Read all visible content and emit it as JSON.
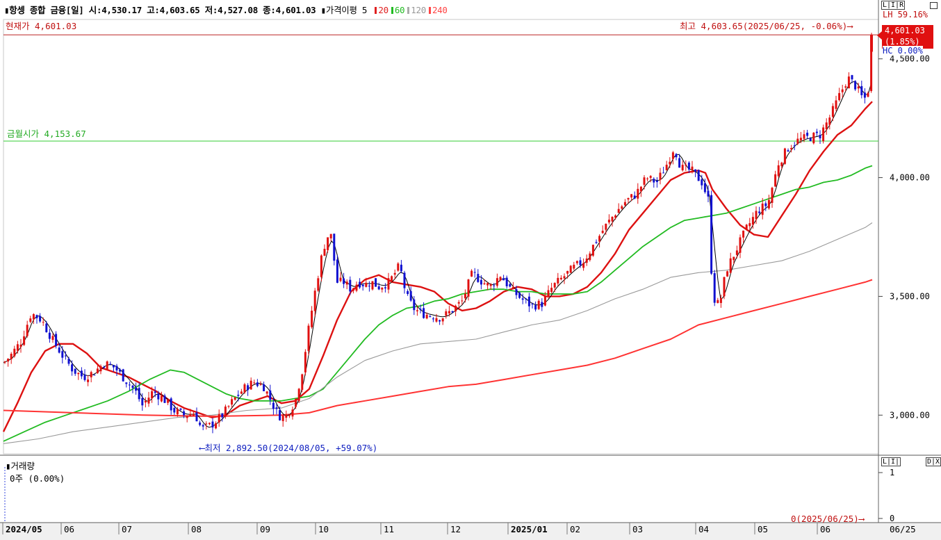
{
  "header": {
    "title": "▮항셍 종합 금융[일]",
    "open": "시:4,530.17",
    "high": "고:4,603.65",
    "low": "저:4,527.08",
    "close": "종:4,601.03",
    "ma_title": "▮가격이평 5",
    "ma": [
      {
        "label": "20",
        "color": "#e02020"
      },
      {
        "label": "60",
        "color": "#22bb22"
      },
      {
        "label": "120",
        "color": "#aaaaaa"
      },
      {
        "label": "240",
        "color": "#ff4444"
      }
    ]
  },
  "labels": {
    "current": "현재가 4,601.03",
    "monday_open": "금월시가 4,153.67",
    "high_note": "최고 4,603.65(2025/06/25, -0.06%)⟶",
    "low_note": "⟵최저 2,892.50(2024/08/05, +59.07%)",
    "price_tag_1": "4,601.03",
    "price_tag_2": "(1.85%)",
    "right_top": "LH  59.16%",
    "right_top2": "HC   0.00%",
    "ctrl_main": "L|I|R",
    "volume_title": "▮거래량",
    "volume_value": "0주 (0.00%)",
    "volume_note": "0(2025/06/25)⟶",
    "ctrl_vol": "L|I|",
    "ctrl_vol2": "D|X"
  },
  "colors": {
    "up": "#e01010",
    "down": "#1010d0",
    "ma5": "#000000",
    "ma20": "#dd1111",
    "ma60": "#22bb22",
    "ma120": "#999999",
    "ma240": "#ff3333",
    "monday_line": "#33cc33",
    "current_line": "#bb2222"
  },
  "chart_data": {
    "type": "candlestick",
    "y_ticks": [
      "4,500.00",
      "4,000.00",
      "3,500.00",
      "3,000.00"
    ],
    "y_tick_values": [
      4500,
      4000,
      3500,
      3000
    ],
    "ylim": [
      2840,
      4660
    ],
    "volume_ticks": [
      "1",
      "0"
    ],
    "x_labels": [
      "2024/05",
      "06",
      "07",
      "08",
      "09",
      "10",
      "11",
      "12",
      "2025/01",
      "02",
      "03",
      "04",
      "05",
      "06",
      "06/25"
    ],
    "reference_lines": {
      "current": 4601.03,
      "monday_open": 4153.67
    },
    "series": [
      {
        "name": "20",
        "values": [
          [
            0,
            2930
          ],
          [
            20,
            3050
          ],
          [
            40,
            3180
          ],
          [
            60,
            3270
          ],
          [
            80,
            3300
          ],
          [
            100,
            3300
          ],
          [
            120,
            3260
          ],
          [
            140,
            3200
          ],
          [
            160,
            3180
          ],
          [
            180,
            3160
          ],
          [
            200,
            3130
          ],
          [
            220,
            3100
          ],
          [
            240,
            3060
          ],
          [
            260,
            3030
          ],
          [
            280,
            3010
          ],
          [
            300,
            2990
          ],
          [
            320,
            3000
          ],
          [
            340,
            3040
          ],
          [
            360,
            3060
          ],
          [
            380,
            3080
          ],
          [
            400,
            3050
          ],
          [
            420,
            3060
          ],
          [
            440,
            3110
          ],
          [
            460,
            3250
          ],
          [
            480,
            3400
          ],
          [
            500,
            3520
          ],
          [
            520,
            3570
          ],
          [
            540,
            3590
          ],
          [
            560,
            3560
          ],
          [
            580,
            3550
          ],
          [
            600,
            3540
          ],
          [
            620,
            3520
          ],
          [
            640,
            3470
          ],
          [
            660,
            3440
          ],
          [
            680,
            3450
          ],
          [
            700,
            3480
          ],
          [
            720,
            3520
          ],
          [
            740,
            3540
          ],
          [
            760,
            3530
          ],
          [
            780,
            3500
          ],
          [
            800,
            3500
          ],
          [
            820,
            3510
          ],
          [
            840,
            3540
          ],
          [
            860,
            3600
          ],
          [
            880,
            3680
          ],
          [
            900,
            3780
          ],
          [
            920,
            3850
          ],
          [
            940,
            3920
          ],
          [
            960,
            3990
          ],
          [
            980,
            4020
          ],
          [
            1000,
            4030
          ],
          [
            1010,
            4020
          ],
          [
            1020,
            3950
          ],
          [
            1040,
            3870
          ],
          [
            1060,
            3800
          ],
          [
            1080,
            3760
          ],
          [
            1100,
            3750
          ],
          [
            1120,
            3840
          ],
          [
            1140,
            3930
          ],
          [
            1160,
            4030
          ],
          [
            1180,
            4110
          ],
          [
            1200,
            4180
          ],
          [
            1220,
            4220
          ],
          [
            1240,
            4290
          ],
          [
            1250,
            4320
          ]
        ]
      },
      {
        "name": "60",
        "values": [
          [
            0,
            2890
          ],
          [
            30,
            2930
          ],
          [
            60,
            2970
          ],
          [
            90,
            3000
          ],
          [
            120,
            3030
          ],
          [
            150,
            3060
          ],
          [
            180,
            3100
          ],
          [
            210,
            3150
          ],
          [
            240,
            3190
          ],
          [
            260,
            3180
          ],
          [
            280,
            3150
          ],
          [
            300,
            3120
          ],
          [
            320,
            3090
          ],
          [
            340,
            3070
          ],
          [
            360,
            3060
          ],
          [
            380,
            3060
          ],
          [
            400,
            3060
          ],
          [
            420,
            3070
          ],
          [
            440,
            3080
          ],
          [
            460,
            3110
          ],
          [
            480,
            3180
          ],
          [
            500,
            3250
          ],
          [
            520,
            3320
          ],
          [
            540,
            3380
          ],
          [
            560,
            3420
          ],
          [
            580,
            3450
          ],
          [
            600,
            3460
          ],
          [
            620,
            3480
          ],
          [
            640,
            3490
          ],
          [
            660,
            3510
          ],
          [
            680,
            3520
          ],
          [
            700,
            3530
          ],
          [
            720,
            3530
          ],
          [
            740,
            3520
          ],
          [
            760,
            3520
          ],
          [
            780,
            3510
          ],
          [
            800,
            3510
          ],
          [
            820,
            3510
          ],
          [
            840,
            3520
          ],
          [
            860,
            3560
          ],
          [
            880,
            3610
          ],
          [
            900,
            3660
          ],
          [
            920,
            3710
          ],
          [
            940,
            3750
          ],
          [
            960,
            3790
          ],
          [
            980,
            3820
          ],
          [
            1000,
            3830
          ],
          [
            1020,
            3840
          ],
          [
            1040,
            3850
          ],
          [
            1060,
            3870
          ],
          [
            1080,
            3890
          ],
          [
            1100,
            3910
          ],
          [
            1120,
            3930
          ],
          [
            1140,
            3950
          ],
          [
            1160,
            3960
          ],
          [
            1180,
            3980
          ],
          [
            1200,
            3990
          ],
          [
            1220,
            4010
          ],
          [
            1240,
            4040
          ],
          [
            1250,
            4050
          ]
        ]
      },
      {
        "name": "120",
        "values": [
          [
            0,
            2880
          ],
          [
            50,
            2900
          ],
          [
            100,
            2930
          ],
          [
            150,
            2950
          ],
          [
            200,
            2970
          ],
          [
            250,
            2990
          ],
          [
            300,
            3000
          ],
          [
            350,
            3020
          ],
          [
            400,
            3030
          ],
          [
            440,
            3070
          ],
          [
            480,
            3160
          ],
          [
            520,
            3230
          ],
          [
            560,
            3270
          ],
          [
            600,
            3300
          ],
          [
            640,
            3310
          ],
          [
            680,
            3320
          ],
          [
            720,
            3350
          ],
          [
            760,
            3380
          ],
          [
            800,
            3400
          ],
          [
            840,
            3440
          ],
          [
            880,
            3490
          ],
          [
            920,
            3530
          ],
          [
            960,
            3580
          ],
          [
            1000,
            3600
          ],
          [
            1040,
            3610
          ],
          [
            1080,
            3630
          ],
          [
            1120,
            3650
          ],
          [
            1160,
            3690
          ],
          [
            1200,
            3740
          ],
          [
            1240,
            3790
          ],
          [
            1250,
            3810
          ]
        ]
      },
      {
        "name": "240",
        "values": [
          [
            0,
            3020
          ],
          [
            100,
            3010
          ],
          [
            200,
            3000
          ],
          [
            300,
            2995
          ],
          [
            400,
            3000
          ],
          [
            440,
            3010
          ],
          [
            480,
            3040
          ],
          [
            520,
            3060
          ],
          [
            560,
            3080
          ],
          [
            600,
            3100
          ],
          [
            640,
            3120
          ],
          [
            680,
            3130
          ],
          [
            720,
            3150
          ],
          [
            760,
            3170
          ],
          [
            800,
            3190
          ],
          [
            840,
            3210
          ],
          [
            880,
            3240
          ],
          [
            920,
            3280
          ],
          [
            960,
            3320
          ],
          [
            1000,
            3380
          ],
          [
            1040,
            3410
          ],
          [
            1080,
            3440
          ],
          [
            1120,
            3470
          ],
          [
            1160,
            3500
          ],
          [
            1200,
            3530
          ],
          [
            1240,
            3560
          ],
          [
            1250,
            3570
          ]
        ]
      }
    ],
    "close_trace": [
      [
        0,
        3220
      ],
      [
        10,
        3250
      ],
      [
        25,
        3310
      ],
      [
        40,
        3430
      ],
      [
        55,
        3400
      ],
      [
        70,
        3320
      ],
      [
        85,
        3250
      ],
      [
        100,
        3190
      ],
      [
        115,
        3160
      ],
      [
        130,
        3180
      ],
      [
        145,
        3220
      ],
      [
        160,
        3200
      ],
      [
        175,
        3150
      ],
      [
        190,
        3100
      ],
      [
        200,
        3040
      ],
      [
        215,
        3100
      ],
      [
        230,
        3070
      ],
      [
        245,
        3020
      ],
      [
        260,
        3000
      ],
      [
        275,
        3010
      ],
      [
        285,
        2940
      ],
      [
        300,
        2960
      ],
      [
        315,
        3000
      ],
      [
        330,
        3060
      ],
      [
        345,
        3110
      ],
      [
        360,
        3140
      ],
      [
        375,
        3120
      ],
      [
        385,
        3060
      ],
      [
        395,
        3000
      ],
      [
        405,
        2990
      ],
      [
        420,
        3060
      ],
      [
        430,
        3190
      ],
      [
        440,
        3380
      ],
      [
        450,
        3550
      ],
      [
        460,
        3700
      ],
      [
        470,
        3780
      ],
      [
        480,
        3560
      ],
      [
        490,
        3560
      ],
      [
        500,
        3530
      ],
      [
        510,
        3560
      ],
      [
        520,
        3550
      ],
      [
        530,
        3560
      ],
      [
        540,
        3540
      ],
      [
        555,
        3560
      ],
      [
        570,
        3630
      ],
      [
        580,
        3500
      ],
      [
        590,
        3450
      ],
      [
        600,
        3430
      ],
      [
        615,
        3420
      ],
      [
        630,
        3410
      ],
      [
        645,
        3440
      ],
      [
        660,
        3480
      ],
      [
        675,
        3600
      ],
      [
        685,
        3570
      ],
      [
        700,
        3540
      ],
      [
        715,
        3590
      ],
      [
        730,
        3530
      ],
      [
        745,
        3490
      ],
      [
        760,
        3460
      ],
      [
        775,
        3470
      ],
      [
        790,
        3540
      ],
      [
        805,
        3580
      ],
      [
        820,
        3620
      ],
      [
        835,
        3650
      ],
      [
        850,
        3720
      ],
      [
        865,
        3790
      ],
      [
        880,
        3850
      ],
      [
        895,
        3900
      ],
      [
        910,
        3930
      ],
      [
        925,
        4000
      ],
      [
        940,
        3980
      ],
      [
        955,
        4060
      ],
      [
        965,
        4130
      ],
      [
        975,
        4040
      ],
      [
        990,
        4030
      ],
      [
        1005,
        3980
      ],
      [
        1015,
        3900
      ],
      [
        1020,
        3500
      ],
      [
        1030,
        3460
      ],
      [
        1040,
        3610
      ],
      [
        1055,
        3700
      ],
      [
        1070,
        3790
      ],
      [
        1085,
        3860
      ],
      [
        1100,
        3890
      ],
      [
        1115,
        4060
      ],
      [
        1130,
        4130
      ],
      [
        1145,
        4160
      ],
      [
        1160,
        4170
      ],
      [
        1175,
        4180
      ],
      [
        1190,
        4260
      ],
      [
        1205,
        4360
      ],
      [
        1215,
        4420
      ],
      [
        1225,
        4390
      ],
      [
        1235,
        4340
      ],
      [
        1243,
        4330
      ],
      [
        1250,
        4601
      ]
    ]
  }
}
